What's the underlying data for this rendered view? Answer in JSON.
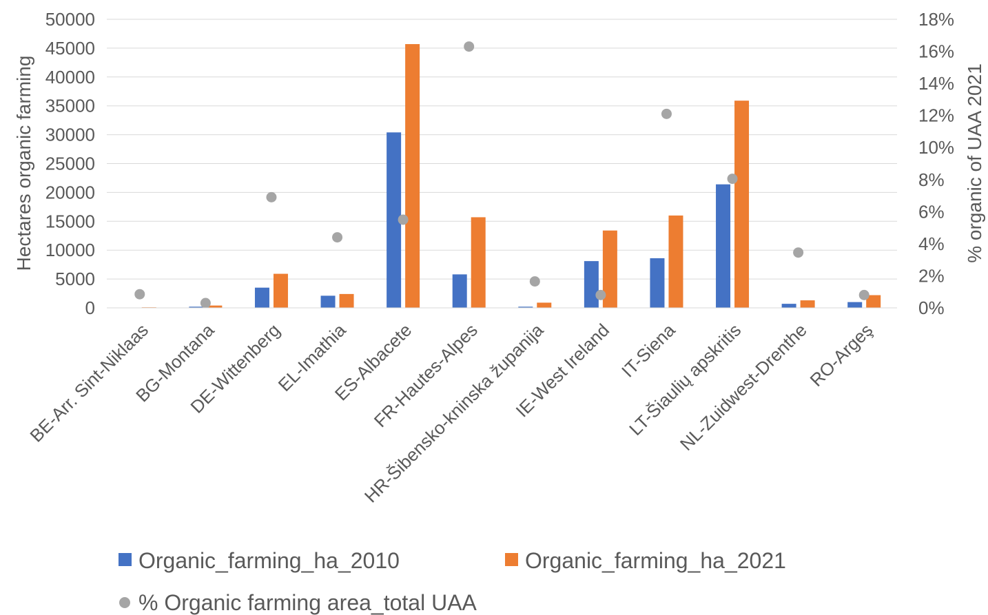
{
  "chart_data": {
    "type": "bar",
    "categories": [
      "BE-Arr. Sint-Niklaas",
      "BG-Montana",
      "DE-Wittenberg",
      "EL-Imathia",
      "ES-Albacete",
      "FR-Hautes-Alpes",
      "HR-Šibensko-kninska županija",
      "IE-West Ireland",
      "IT-Siena",
      "LT-Šiaulių apskritis",
      "NL-Zuidwest-Drenthe",
      "RO-Argeş"
    ],
    "series": [
      {
        "name": "Organic_farming_ha_2010",
        "kind": "bar",
        "axis": "left",
        "color": "#4472C4",
        "values": [
          50,
          200,
          3500,
          2100,
          30400,
          5800,
          200,
          8100,
          8600,
          21400,
          700,
          1000
        ]
      },
      {
        "name": "Organic_farming_ha_2021",
        "kind": "bar",
        "axis": "left",
        "color": "#ED7D31",
        "values": [
          100,
          400,
          5900,
          2400,
          45700,
          15700,
          900,
          13400,
          16000,
          35900,
          1300,
          2200
        ]
      },
      {
        "name": "% Organic farming area_total UAA",
        "kind": "scatter",
        "axis": "right",
        "color": "#A5A5A5",
        "values": [
          0.85,
          0.3,
          6.9,
          4.4,
          5.5,
          16.3,
          1.65,
          0.8,
          12.1,
          8.05,
          3.45,
          0.8
        ]
      }
    ],
    "ylabel": "Hectares organic farming",
    "y2label": "% organic of UAA 2021",
    "ylim": [
      0,
      50000
    ],
    "y2lim": [
      0,
      18
    ],
    "yticks": [
      "0",
      "5000",
      "10000",
      "15000",
      "20000",
      "25000",
      "30000",
      "35000",
      "40000",
      "45000",
      "50000"
    ],
    "y2ticks": [
      "0%",
      "2%",
      "4%",
      "6%",
      "8%",
      "10%",
      "12%",
      "14%",
      "16%",
      "18%"
    ],
    "legend_position": "bottom",
    "grid": true
  }
}
